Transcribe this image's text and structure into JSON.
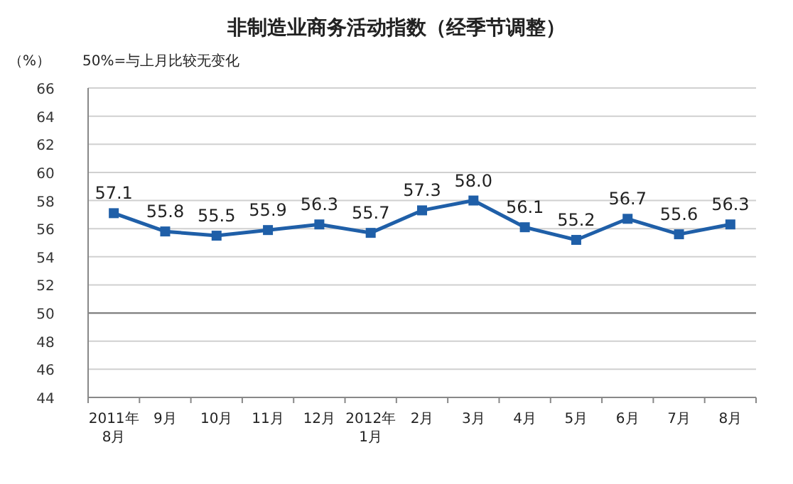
{
  "chart_data": {
    "type": "line",
    "title": "非制造业商务活动指数（经季节调整）",
    "ylabel": "（%）",
    "annotations": [
      "50%=与上月比较无变化"
    ],
    "categories": [
      "2011年\n8月",
      "9月",
      "10月",
      "11月",
      "12月",
      "2012年\n1月",
      "2月",
      "3月",
      "4月",
      "5月",
      "6月",
      "7月",
      "8月"
    ],
    "series": [
      {
        "color": "#1f5fa8",
        "values": [
          57.1,
          55.8,
          55.5,
          55.9,
          56.3,
          55.7,
          57.3,
          58.0,
          56.1,
          55.2,
          56.7,
          55.6,
          56.3
        ]
      }
    ],
    "value_labels": [
      "57.1",
      "55.8",
      "55.5",
      "55.9",
      "56.3",
      "55.7",
      "57.3",
      "58.0",
      "56.1",
      "55.2",
      "56.7",
      "55.6",
      "56.3"
    ],
    "ylim": [
      44,
      66
    ],
    "yticks": [
      44,
      46,
      48,
      50,
      52,
      54,
      56,
      58,
      60,
      62,
      64,
      66
    ],
    "ref_lines": [
      {
        "axis": "y",
        "value": 50,
        "color": "#808080"
      }
    ],
    "grid": "y",
    "marker": "square"
  }
}
